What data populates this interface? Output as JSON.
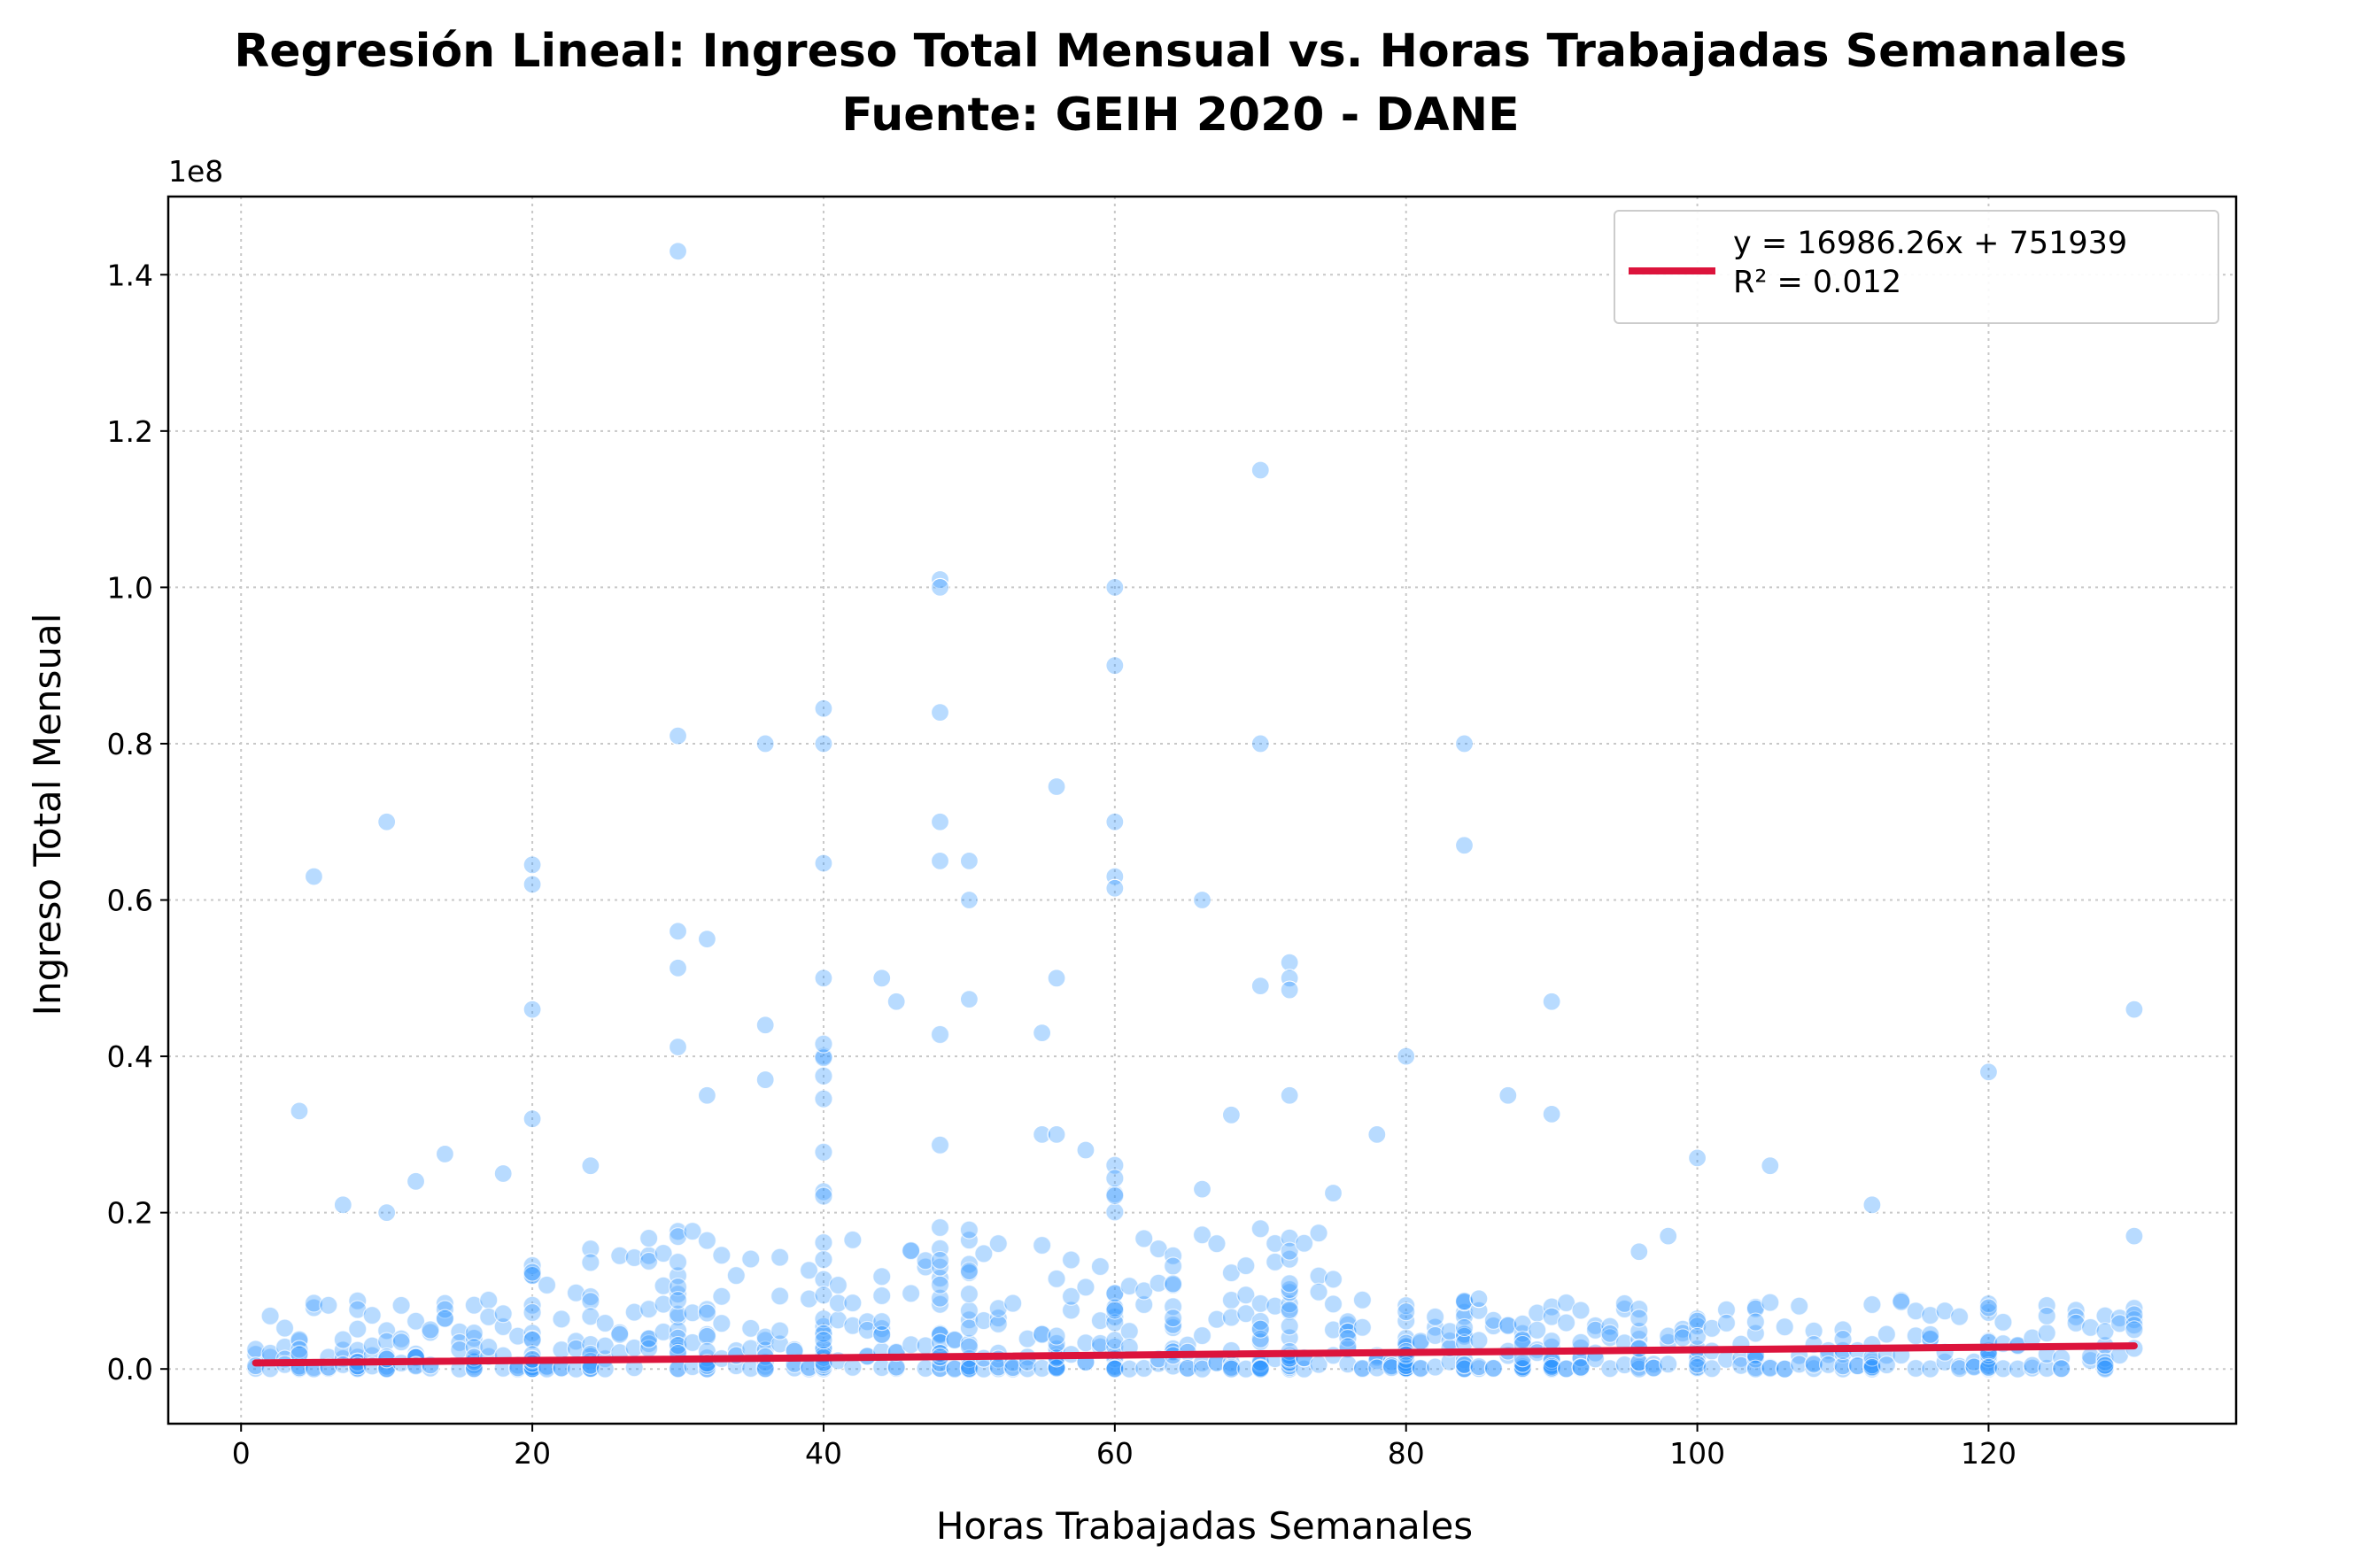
{
  "title_lines": [
    "Regresión Lineal: Ingreso Total Mensual vs. Horas Trabajadas Semanales",
    "Fuente: GEIH 2020 - DANE"
  ],
  "chart_data": {
    "type": "scatter",
    "title": "Regresión Lineal: Ingreso Total Mensual vs. Horas Trabajadas Semanales\nFuente: GEIH 2020 - DANE",
    "xlabel": "Horas Trabajadas Semanales",
    "ylabel": "Ingreso Total Mensual",
    "y_offset_text": "1e8",
    "xlim": [
      -5,
      137
    ],
    "ylim": [
      -7000000,
      150000000
    ],
    "xticks": [
      0,
      20,
      40,
      60,
      80,
      100,
      120
    ],
    "xtick_labels": [
      "0",
      "20",
      "40",
      "60",
      "80",
      "100",
      "120"
    ],
    "yticks": [
      0,
      20000000,
      40000000,
      60000000,
      80000000,
      100000000,
      120000000,
      140000000
    ],
    "ytick_labels": [
      "0.0",
      "0.2",
      "0.4",
      "0.6",
      "0.8",
      "1.0",
      "1.2",
      "1.4"
    ],
    "grid": true,
    "legend_position": "upper-right",
    "colors": {
      "scatter": "#3399ff",
      "regression": "#dc143c"
    },
    "regression": {
      "slope": 16986.26,
      "intercept": 751939,
      "x_range": [
        1,
        130
      ],
      "label": "y = 16986.26x + 751939",
      "r2_label": "R² = 0.012"
    },
    "series": [
      {
        "x": [
          30,
          70,
          48,
          48,
          60,
          60,
          40,
          48,
          30,
          36,
          40,
          84,
          70,
          10,
          48,
          56,
          60,
          84,
          5,
          20,
          40,
          48,
          50,
          60,
          20,
          66,
          50,
          60,
          30,
          32,
          72,
          30,
          72,
          40,
          44,
          56,
          50,
          70,
          72,
          45,
          90,
          20,
          130,
          36,
          30,
          80,
          55,
          72,
          32,
          36,
          87,
          4,
          90,
          68,
          20,
          55,
          78,
          56,
          58,
          14,
          100,
          105,
          18,
          24,
          66,
          75,
          120,
          12,
          7,
          10,
          112,
          96,
          98,
          85,
          130
        ],
        "y": [
          143000000,
          115000000,
          101000000,
          100000000,
          100000000,
          90000000,
          84500000,
          84000000,
          81000000,
          80000000,
          80000000,
          80000000,
          80000000,
          70000000,
          70000000,
          74500000,
          70000000,
          67000000,
          63000000,
          64500000,
          64700000,
          65000000,
          65000000,
          63000000,
          62000000,
          60000000,
          60000000,
          61500000,
          56000000,
          55000000,
          52000000,
          51300000,
          50000000,
          50000000,
          50000000,
          50000000,
          47300000,
          49000000,
          48500000,
          47000000,
          47000000,
          46000000,
          46000000,
          44000000,
          41200000,
          40000000,
          43000000,
          35000000,
          35000000,
          37000000,
          35000000,
          33000000,
          32600000,
          32500000,
          32000000,
          30000000,
          30000000,
          30000000,
          28000000,
          27500000,
          27000000,
          26000000,
          25000000,
          26000000,
          23000000,
          22500000,
          38000000,
          24000000,
          21000000,
          20000000,
          21000000,
          15000000,
          17000000,
          9000000,
          17000000
        ]
      }
    ]
  }
}
